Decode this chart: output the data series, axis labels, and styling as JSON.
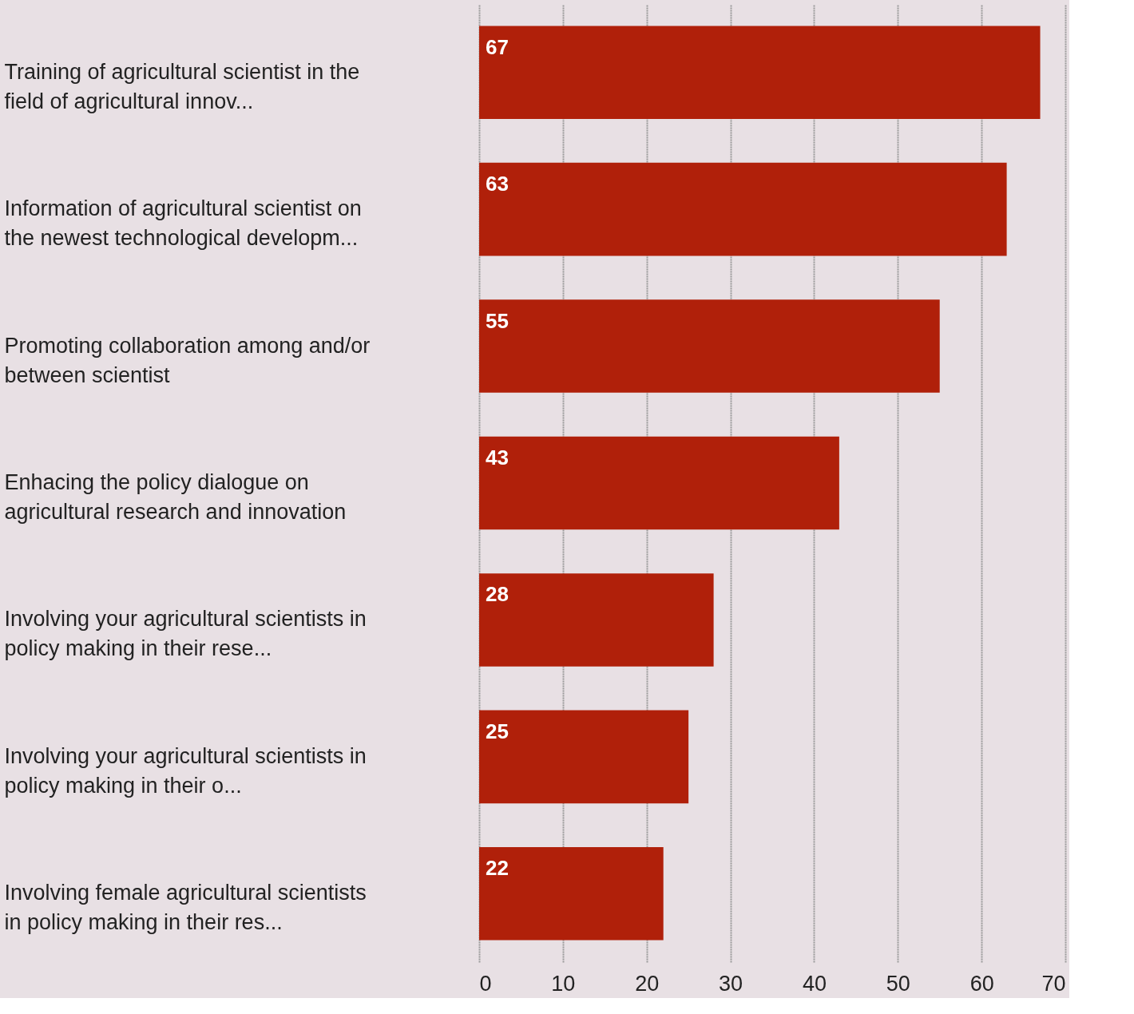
{
  "chart_data": {
    "type": "bar",
    "orientation": "horizontal",
    "categories": [
      "Training of agricultural scientist in the field of agricultural innov...",
      "Information of agricultural scientist on the newest technological developm...",
      "Promoting collaboration among and/or between scientist",
      "Enhacing the policy dialogue on agricultural research and innovation",
      "Involving your agricultural scientists in policy making in their rese...",
      "Involving your agricultural scientists in policy making in their o...",
      "Involving female agricultural scientists in policy making in their res..."
    ],
    "values": [
      67,
      63,
      55,
      43,
      28,
      25,
      22
    ],
    "color": "#b0200a",
    "xlim": [
      0,
      70
    ],
    "xticks": [
      0,
      10,
      20,
      30,
      40,
      50,
      60,
      70
    ],
    "grid": "x",
    "data_labels": true
  }
}
